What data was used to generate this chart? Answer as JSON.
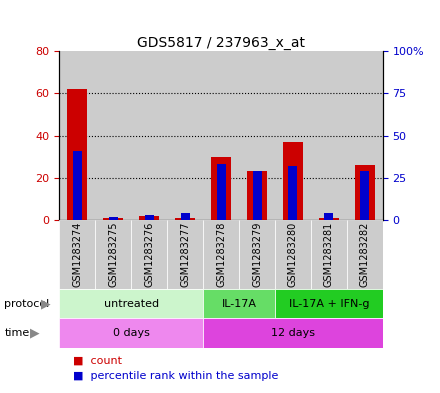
{
  "title": "GDS5817 / 237963_x_at",
  "samples": [
    "GSM1283274",
    "GSM1283275",
    "GSM1283276",
    "GSM1283277",
    "GSM1283278",
    "GSM1283279",
    "GSM1283280",
    "GSM1283281",
    "GSM1283282"
  ],
  "count_values": [
    62,
    1,
    2,
    1,
    30,
    23,
    37,
    1,
    26
  ],
  "percentile_values": [
    41,
    2,
    3,
    4,
    33,
    29,
    32,
    4,
    29
  ],
  "left_ylim": [
    0,
    80
  ],
  "right_ylim": [
    0,
    100
  ],
  "left_yticks": [
    0,
    20,
    40,
    60,
    80
  ],
  "right_yticks": [
    0,
    25,
    50,
    75,
    100
  ],
  "right_yticklabels": [
    "0",
    "25",
    "50",
    "75",
    "100%"
  ],
  "protocol_groups": [
    {
      "label": "untreated",
      "start": 0,
      "end": 4,
      "color": "#ccf5cc"
    },
    {
      "label": "IL-17A",
      "start": 4,
      "end": 6,
      "color": "#66dd66"
    },
    {
      "label": "IL-17A + IFN-g",
      "start": 6,
      "end": 9,
      "color": "#22cc22"
    }
  ],
  "time_groups": [
    {
      "label": "0 days",
      "start": 0,
      "end": 4,
      "color": "#ee88ee"
    },
    {
      "label": "12 days",
      "start": 4,
      "end": 9,
      "color": "#dd44dd"
    }
  ],
  "count_color": "#cc0000",
  "percentile_color": "#0000cc",
  "red_bar_width": 0.55,
  "blue_bar_width": 0.25,
  "grid_color": "#000000",
  "background_color": "#ffffff",
  "sample_bg_color": "#cccccc",
  "legend_count_label": "count",
  "legend_percentile_label": "percentile rank within the sample"
}
